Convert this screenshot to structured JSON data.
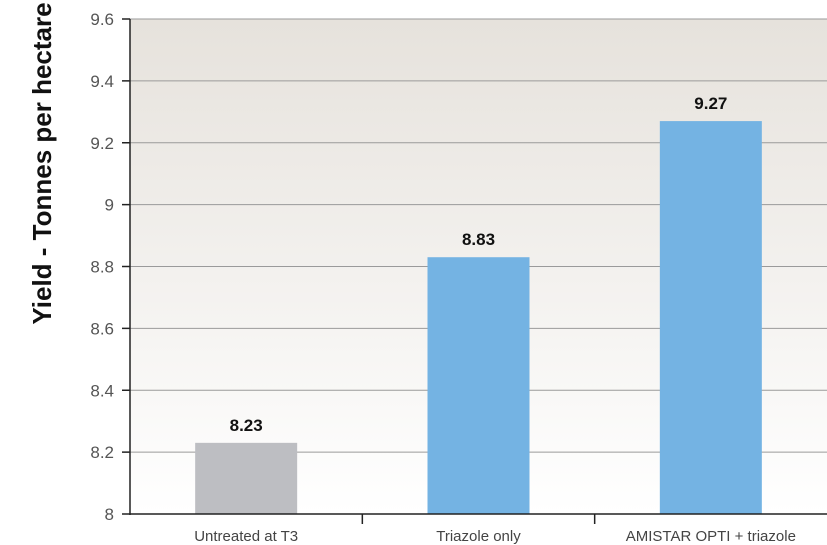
{
  "chart_data": {
    "type": "bar",
    "ylabel": "Yield - Tonnes per hectare",
    "xlabel": "",
    "categories": [
      "Untreated at T3",
      "Triazole only",
      "AMISTAR OPTI + triazole"
    ],
    "values": [
      8.23,
      8.83,
      9.27
    ],
    "value_labels": [
      "8.23",
      "8.83",
      "9.27"
    ],
    "bar_colors": [
      "#bdbec2",
      "#74b3e3",
      "#74b3e3"
    ],
    "ylim": [
      8,
      9.6
    ],
    "yticks": [
      8,
      8.2,
      8.4,
      8.6,
      8.8,
      9,
      9.2,
      9.4,
      9.6
    ],
    "ytick_labels": [
      "8",
      "8.2",
      "8.4",
      "8.6",
      "8.8",
      "9",
      "9.2",
      "9.4",
      "9.6"
    ],
    "grid": true,
    "legend": "none",
    "background_gradient": [
      "#e6e2dc",
      "#ffffff"
    ]
  }
}
